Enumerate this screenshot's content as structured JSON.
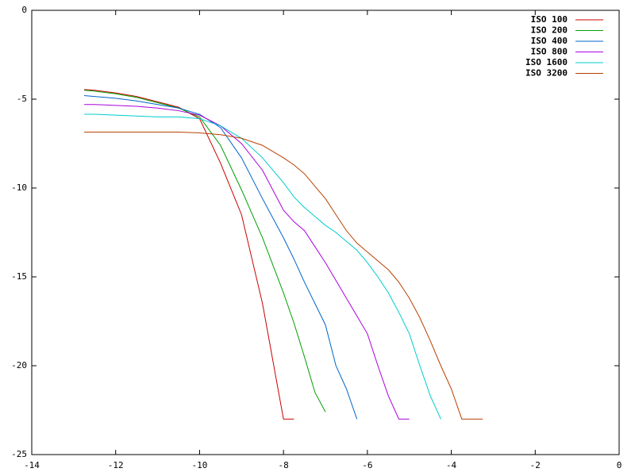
{
  "chart_data": {
    "type": "line",
    "x": [
      -12.75,
      -12.5,
      -12,
      -11.5,
      -11,
      -10.5,
      -10,
      -9.5,
      -9,
      -8.5,
      -8,
      -7.75,
      -7.5,
      -7.25,
      -7,
      -6.75,
      -6.5,
      -6.25,
      -6,
      -5.75,
      -5.5,
      -5.25,
      -5,
      -4.75,
      -4.5,
      -4.25,
      -4,
      -3.75,
      -3.5,
      -3.25
    ],
    "series": [
      {
        "name": "ISO 100",
        "color": "#cc0000",
        "values": [
          -4.46,
          -4.5,
          -4.65,
          -4.85,
          -5.15,
          -5.45,
          -6.1,
          -8.6,
          -11.5,
          -16.5,
          -23,
          -23,
          null,
          null,
          null,
          null,
          null,
          null,
          null,
          null,
          null,
          null,
          null,
          null,
          null,
          null,
          null,
          null,
          null,
          null
        ]
      },
      {
        "name": "ISO 200",
        "color": "#00a000",
        "values": [
          -4.5,
          -4.55,
          -4.7,
          -4.9,
          -5.2,
          -5.5,
          -6.0,
          -7.6,
          -10.1,
          -12.8,
          -15.9,
          -17.6,
          -19.5,
          -21.5,
          -22.6,
          null,
          null,
          null,
          null,
          null,
          null,
          null,
          null,
          null,
          null,
          null,
          null,
          null,
          null,
          null
        ]
      },
      {
        "name": "ISO 400",
        "color": "#0066cc",
        "values": [
          -4.8,
          -4.85,
          -4.95,
          -5.1,
          -5.3,
          -5.5,
          -5.85,
          -6.6,
          -8.3,
          -10.6,
          -12.8,
          -14.0,
          -15.3,
          -16.5,
          -17.7,
          -20,
          -21.3,
          -23,
          null,
          null,
          null,
          null,
          null,
          null,
          null,
          null,
          null,
          null,
          null,
          null
        ]
      },
      {
        "name": "ISO 800",
        "color": "#aa00dd",
        "values": [
          -5.3,
          -5.3,
          -5.35,
          -5.4,
          -5.5,
          -5.65,
          -5.9,
          -6.5,
          -7.5,
          -9.0,
          -11.25,
          -11.9,
          -12.4,
          -13.3,
          -14.2,
          -15.2,
          -16.2,
          -17.2,
          -18.2,
          -20,
          -21.7,
          -23,
          -23,
          null,
          null,
          null,
          null,
          null,
          null,
          null
        ]
      },
      {
        "name": "ISO 1600",
        "color": "#00cccc",
        "values": [
          -5.85,
          -5.85,
          -5.9,
          -5.95,
          -6.0,
          -6.0,
          -6.1,
          -6.5,
          -7.2,
          -8.3,
          -9.7,
          -10.5,
          -11.1,
          -11.6,
          -12.1,
          -12.5,
          -13.0,
          -13.5,
          -14.2,
          -15.0,
          -15.9,
          -17.0,
          -18.2,
          -20,
          -21.7,
          -23,
          null,
          null,
          null,
          null
        ]
      },
      {
        "name": "ISO 3200",
        "color": "#b84000",
        "values": [
          -6.85,
          -6.85,
          -6.85,
          -6.85,
          -6.85,
          -6.85,
          -6.9,
          -7.0,
          -7.2,
          -7.6,
          -8.3,
          -8.7,
          -9.2,
          -9.9,
          -10.6,
          -11.5,
          -12.4,
          -13.1,
          -13.6,
          -14.1,
          -14.6,
          -15.3,
          -16.2,
          -17.3,
          -18.6,
          -20,
          -21.3,
          -23,
          -23,
          -23
        ]
      }
    ],
    "xlim": [
      -14,
      0
    ],
    "xticks": [
      -14,
      -12,
      -10,
      -8,
      -6,
      -4,
      -2,
      0
    ],
    "ylim": [
      -25,
      0
    ],
    "yticks": [
      -25,
      -20,
      -15,
      -10,
      -5,
      0
    ],
    "legend": "top-right"
  }
}
